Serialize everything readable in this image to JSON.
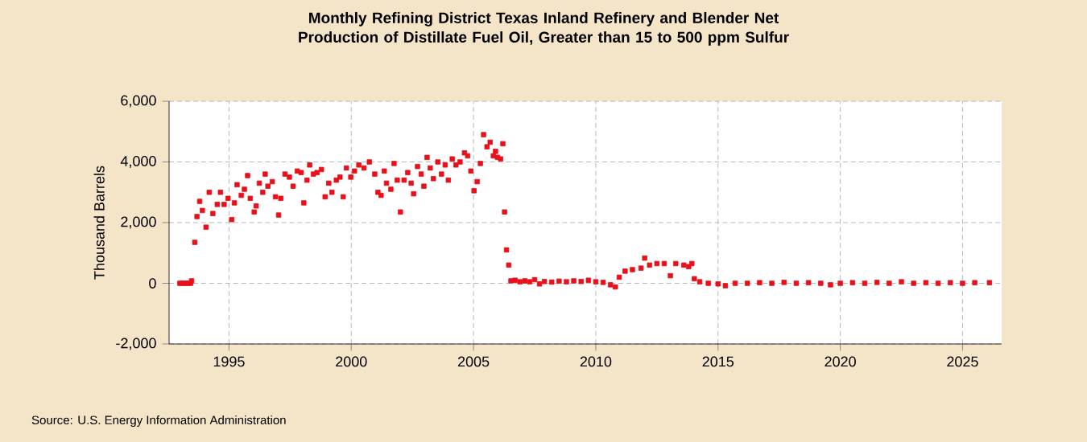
{
  "chart_data": {
    "type": "scatter",
    "title": "Monthly Refining District Texas Inland Refinery and Blender Net Production of Distillate Fuel Oil, Greater than 15 to 500 ppm Sulfur",
    "ylabel": "Thousand Barrels",
    "annotations": [
      "Source: U.S. Energy Information Administration"
    ],
    "color": "#e8101a",
    "marker": "square",
    "grid": true,
    "xlim": [
      1992.55,
      2026.6
    ],
    "ylim": [
      -2000,
      6000
    ],
    "xticks": [
      1995,
      2000,
      2005,
      2010,
      2015,
      2020,
      2025
    ],
    "yticks": [
      {
        "value": -2000,
        "label": "-2,000"
      },
      {
        "value": 0,
        "label": "0"
      },
      {
        "value": 2000,
        "label": "2,000"
      },
      {
        "value": 4000,
        "label": "4,000"
      },
      {
        "value": 6000,
        "label": "6,000"
      }
    ],
    "x": [
      1992.99,
      1993.1,
      1993.21,
      1993.32,
      1993.43,
      1993.47,
      1993.6,
      1993.69,
      1993.8,
      1993.91,
      1994.06,
      1994.19,
      1994.34,
      1994.52,
      1994.65,
      1994.8,
      1994.96,
      1995.11,
      1995.22,
      1995.33,
      1995.5,
      1995.63,
      1995.76,
      1995.87,
      1996.03,
      1996.11,
      1996.24,
      1996.38,
      1996.48,
      1996.59,
      1996.77,
      1996.9,
      1997.03,
      1997.12,
      1997.29,
      1997.47,
      1997.62,
      1997.79,
      1997.95,
      1998.06,
      1998.19,
      1998.3,
      1998.45,
      1998.6,
      1998.78,
      1998.93,
      1999.08,
      1999.21,
      1999.39,
      1999.54,
      1999.67,
      1999.8,
      1999.98,
      2000.13,
      2000.31,
      2000.52,
      2000.74,
      2000.96,
      2001.09,
      2001.22,
      2001.35,
      2001.44,
      2001.62,
      2001.75,
      2001.88,
      2002.01,
      2002.16,
      2002.31,
      2002.45,
      2002.55,
      2002.71,
      2002.86,
      2002.97,
      2003.1,
      2003.23,
      2003.36,
      2003.54,
      2003.69,
      2003.84,
      2003.97,
      2004.13,
      2004.28,
      2004.45,
      2004.63,
      2004.76,
      2004.89,
      2005.02,
      2005.15,
      2005.28,
      2005.41,
      2005.55,
      2005.68,
      2005.81,
      2005.9,
      2005.98,
      2006.11,
      2006.2,
      2006.27,
      2006.35,
      2006.44,
      2006.53,
      2006.7,
      2006.9,
      2007.1,
      2007.3,
      2007.5,
      2007.7,
      2007.9,
      2008.2,
      2008.5,
      2008.8,
      2009.1,
      2009.4,
      2009.7,
      2010.0,
      2010.3,
      2010.6,
      2010.8,
      2010.96,
      2011.2,
      2011.5,
      2011.85,
      2012.0,
      2012.2,
      2012.5,
      2012.8,
      2013.05,
      2013.27,
      2013.6,
      2013.8,
      2013.93,
      2014.03,
      2014.25,
      2014.6,
      2015.0,
      2015.3,
      2015.7,
      2016.2,
      2016.7,
      2017.2,
      2017.7,
      2018.2,
      2018.7,
      2019.2,
      2019.6,
      2020.0,
      2020.5,
      2021.0,
      2021.5,
      2022.0,
      2022.5,
      2023.0,
      2023.5,
      2024.0,
      2024.5,
      2025.0,
      2025.5,
      2026.1
    ],
    "values": [
      0,
      0,
      0,
      0,
      0,
      80,
      1350,
      2200,
      2700,
      2400,
      1850,
      3000,
      2300,
      2600,
      3000,
      2600,
      2800,
      2100,
      2650,
      3250,
      2900,
      3100,
      3550,
      2800,
      2350,
      2550,
      3300,
      3000,
      3600,
      3200,
      3350,
      2850,
      2250,
      2800,
      3600,
      3500,
      3200,
      3700,
      3650,
      2650,
      3400,
      3900,
      3600,
      3650,
      3750,
      2850,
      3300,
      3000,
      3400,
      3500,
      2850,
      3800,
      3500,
      3700,
      3900,
      3800,
      4000,
      3600,
      3000,
      2900,
      3700,
      3300,
      3100,
      3950,
      3400,
      2350,
      3400,
      3650,
      3300,
      2950,
      3850,
      3600,
      3200,
      4150,
      3800,
      3450,
      4000,
      3600,
      3900,
      3400,
      4100,
      3900,
      4000,
      4300,
      4200,
      3700,
      3050,
      3350,
      3950,
      4900,
      4500,
      4650,
      4200,
      4350,
      4150,
      4100,
      4600,
      2350,
      1100,
      600,
      80,
      100,
      50,
      80,
      50,
      120,
      -20,
      60,
      40,
      70,
      50,
      80,
      60,
      100,
      50,
      30,
      -50,
      -120,
      200,
      400,
      450,
      500,
      830,
      600,
      650,
      650,
      250,
      650,
      600,
      550,
      650,
      150,
      50,
      0,
      -20,
      -80,
      0,
      0,
      20,
      0,
      30,
      0,
      20,
      0,
      -50,
      0,
      20,
      0,
      30,
      0,
      50,
      0,
      20,
      0,
      20,
      0,
      20,
      20
    ]
  }
}
